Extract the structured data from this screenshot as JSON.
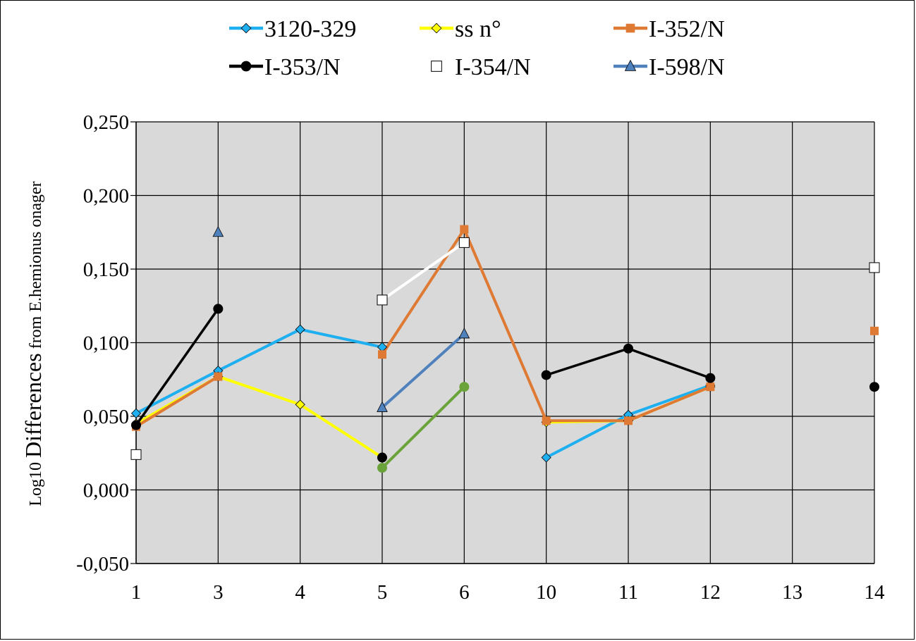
{
  "chart_data": {
    "type": "line",
    "categories": [
      "1",
      "3",
      "4",
      "5",
      "6",
      "10",
      "11",
      "12",
      "13",
      "14"
    ],
    "ylim": [
      -0.05,
      0.25
    ],
    "yticks": [
      "-0,050",
      "0,000",
      "0,050",
      "0,100",
      "0,150",
      "0,200",
      "0,250"
    ],
    "ytick_values": [
      -0.05,
      0,
      0.05,
      0.1,
      0.15,
      0.2,
      0.25
    ],
    "ylabel": {
      "prefix": "Log10 ",
      "main": "Differences",
      "suffix": " from E.hemionus onager"
    },
    "grid": true,
    "plot_background": "#d9d9d9",
    "legend_position": "top",
    "series": [
      {
        "name": "3120-329",
        "color": "#1eaff0",
        "marker": "diamond",
        "marker_fill": "#1eaff0",
        "values": [
          0.052,
          0.081,
          0.109,
          0.097,
          null,
          0.022,
          0.051,
          0.071,
          null,
          null
        ]
      },
      {
        "name": "ss n°",
        "color": "#ffff00",
        "marker": "diamond",
        "marker_fill": "#ffff00",
        "values": [
          0.045,
          0.077,
          0.058,
          0.022,
          null,
          0.046,
          0.047,
          0.07,
          null,
          null
        ]
      },
      {
        "name": "I-352/N",
        "color": "#de7a33",
        "marker": "square",
        "marker_fill": "#de7a33",
        "values": [
          0.043,
          0.077,
          null,
          0.092,
          0.177,
          0.047,
          0.047,
          0.07,
          null,
          0.108
        ]
      },
      {
        "name": "I-353/N",
        "color": "#000000",
        "marker": "circle",
        "marker_fill": "#000000",
        "values": [
          0.044,
          0.123,
          null,
          0.022,
          null,
          0.078,
          0.096,
          0.076,
          null,
          0.07
        ]
      },
      {
        "name": "I-354/N",
        "color": "#ffffff",
        "marker": "square-open",
        "marker_fill": "#ffffff",
        "values": [
          0.024,
          null,
          null,
          0.129,
          0.168,
          null,
          null,
          null,
          null,
          0.151
        ]
      },
      {
        "name": "I-598/N",
        "color": "#4f81bd",
        "marker": "triangle",
        "marker_fill": "#4f81bd",
        "values": [
          null,
          0.175,
          null,
          0.056,
          0.106,
          null,
          null,
          null,
          null,
          null
        ]
      },
      {
        "color": "#6aa339",
        "marker": "circle",
        "marker_fill": "#6aa339",
        "in_legend": false,
        "values": [
          null,
          null,
          null,
          0.015,
          0.07,
          null,
          null,
          null,
          null,
          null
        ]
      }
    ]
  }
}
